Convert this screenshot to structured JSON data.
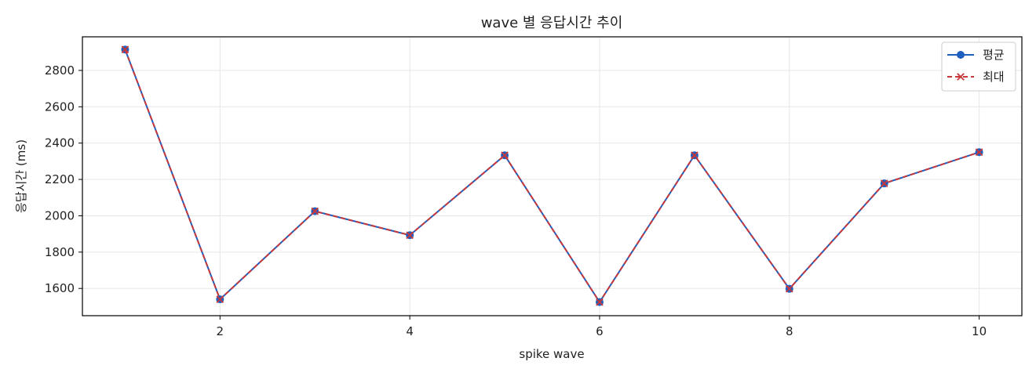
{
  "chart_data": {
    "type": "line",
    "title": "wave 별 응답시간 추이",
    "xlabel": "spike wave",
    "ylabel": "응답시간 (ms)",
    "x": [
      1,
      2,
      3,
      4,
      5,
      6,
      7,
      8,
      9,
      10
    ],
    "xlim": [
      0.55,
      10.45
    ],
    "ylim": [
      1450,
      2985
    ],
    "xticks": [
      2,
      4,
      6,
      8,
      10
    ],
    "yticks": [
      1600,
      1800,
      2000,
      2200,
      2400,
      2600,
      2800
    ],
    "grid": true,
    "legend_position": "top-right",
    "series": [
      {
        "name": "평균",
        "values": [
          2915,
          1540,
          2025,
          1893,
          2333,
          1525,
          2333,
          1598,
          2178,
          2350
        ],
        "color": "#1f5fbf",
        "linestyle": "solid",
        "marker": "circle"
      },
      {
        "name": "최대",
        "values": [
          2915,
          1540,
          2025,
          1893,
          2333,
          1525,
          2333,
          1598,
          2178,
          2350
        ],
        "color": "#c8373a",
        "linestyle": "dashed",
        "marker": "x"
      }
    ]
  }
}
